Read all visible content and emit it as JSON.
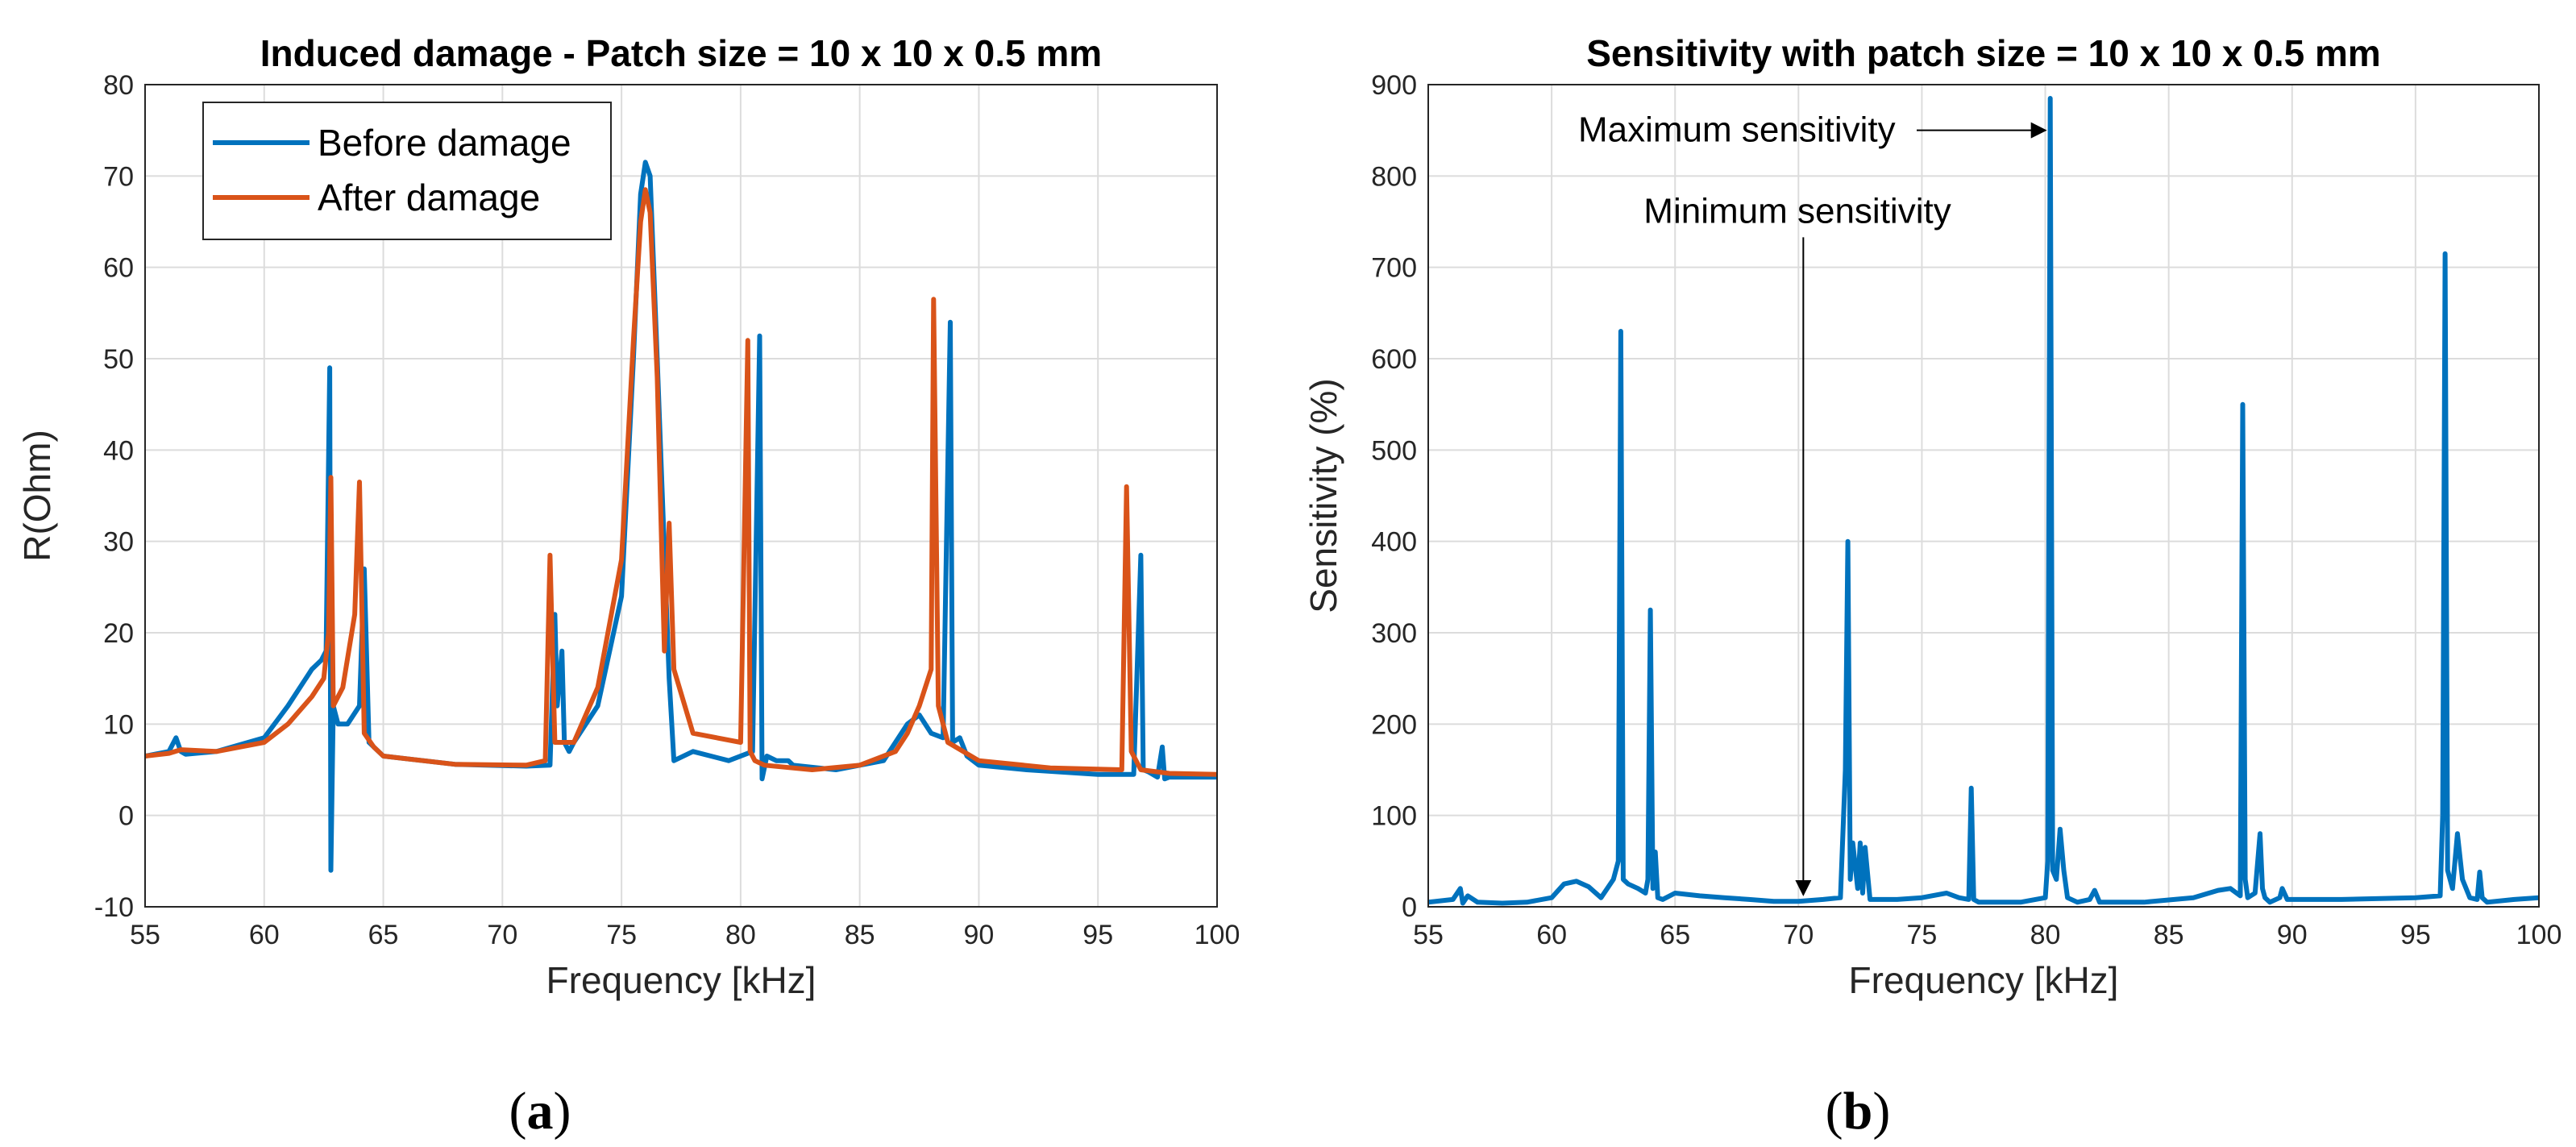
{
  "chart_data": [
    {
      "type": "line",
      "panel": "a",
      "panel_label": "(a)",
      "panel_letter": "a",
      "title": "Induced damage - Patch size = 10 x 10 x 0.5 mm",
      "xlabel": "Frequency [kHz]",
      "ylabel": "R(Ohm)",
      "xlim": [
        55,
        100
      ],
      "ylim": [
        -10,
        80
      ],
      "xticks": [
        55,
        60,
        65,
        70,
        75,
        80,
        85,
        90,
        95,
        100
      ],
      "yticks": [
        -10,
        0,
        10,
        20,
        30,
        40,
        50,
        60,
        70,
        80
      ],
      "grid": true,
      "legend": {
        "location": "top-left",
        "entries": [
          "Before damage",
          "After damage"
        ]
      },
      "series": [
        {
          "name": "Before damage",
          "color": "#0072BD",
          "x": [
            55,
            56,
            56.3,
            56.5,
            56.7,
            58,
            60,
            61,
            62,
            62.4,
            62.6,
            62.75,
            62.8,
            62.9,
            63.1,
            63.5,
            64,
            64.2,
            64.4,
            65,
            68,
            71,
            72,
            72.2,
            72.3,
            72.5,
            72.6,
            72.8,
            73,
            74,
            75,
            75.5,
            75.8,
            76,
            76.2,
            76.5,
            77,
            77.2,
            78,
            79.5,
            80.5,
            80.8,
            80.9,
            81.1,
            81.5,
            82,
            82.2,
            84,
            86,
            87,
            87.5,
            88,
            88.5,
            88.8,
            88.9,
            89.2,
            89.5,
            90,
            92,
            95,
            96.5,
            96.8,
            96.9,
            97.1,
            97.5,
            97.7,
            97.8,
            98,
            100
          ],
          "values": [
            6.5,
            7,
            8.5,
            7,
            6.7,
            7,
            8.5,
            12,
            16,
            17,
            18,
            49,
            -6,
            12,
            10,
            10,
            12,
            27,
            8,
            6.5,
            5.6,
            5.4,
            5.5,
            22,
            12,
            18,
            8,
            7,
            8,
            12,
            24,
            50,
            68,
            71.5,
            70,
            50,
            15,
            6,
            7,
            6,
            7,
            52.5,
            4,
            6.5,
            6,
            6,
            5.5,
            5,
            6,
            10,
            11,
            9,
            8.5,
            54,
            8,
            8.5,
            6.5,
            5.5,
            5,
            4.5,
            4.5,
            28.5,
            5,
            4.8,
            4.2,
            7.5,
            4,
            4.2,
            4.2
          ]
        },
        {
          "name": "After damage",
          "color": "#D95319",
          "x": [
            55,
            56,
            56.5,
            58,
            60,
            61,
            62,
            62.5,
            62.7,
            62.8,
            62.9,
            63.3,
            63.8,
            64,
            64.2,
            64.6,
            65,
            68,
            71,
            71.8,
            72,
            72.2,
            73,
            74,
            75,
            75.5,
            75.8,
            76,
            76.2,
            76.5,
            76.8,
            77,
            77.2,
            78,
            80,
            80.3,
            80.4,
            80.6,
            81,
            83,
            85,
            86.5,
            87,
            87.5,
            88,
            88.1,
            88.3,
            88.7,
            90,
            93,
            96,
            96.2,
            96.4,
            96.8,
            98,
            100
          ],
          "values": [
            6.5,
            6.8,
            7.2,
            7,
            8,
            10,
            13,
            15,
            20,
            37,
            12,
            14,
            22,
            36.5,
            9,
            7.5,
            6.5,
            5.6,
            5.5,
            6,
            28.5,
            8,
            8,
            14,
            28,
            52,
            65,
            68.5,
            66,
            48,
            18,
            32,
            16,
            9,
            8,
            52,
            7,
            6,
            5.5,
            5,
            5.5,
            7,
            9,
            12,
            16,
            56.5,
            12,
            8,
            6,
            5.2,
            5,
            36,
            7,
            5,
            4.6,
            4.5
          ]
        }
      ]
    },
    {
      "type": "line",
      "panel": "b",
      "panel_label": "(b)",
      "panel_letter": "b",
      "title": "Sensitivity with patch size = 10 x 10 x 0.5 mm",
      "xlabel": "Frequency [kHz]",
      "ylabel": "Sensitivity (%)",
      "xlim": [
        55,
        100
      ],
      "ylim": [
        0,
        900
      ],
      "xticks": [
        55,
        60,
        65,
        70,
        75,
        80,
        85,
        90,
        95,
        100
      ],
      "yticks": [
        0,
        100,
        200,
        300,
        400,
        500,
        600,
        700,
        800,
        900
      ],
      "grid": true,
      "series": [
        {
          "name": "Sensitivity",
          "color": "#0072BD",
          "x": [
            55,
            56,
            56.3,
            56.4,
            56.6,
            57,
            58,
            59,
            60,
            60.5,
            61,
            61.5,
            62,
            62.5,
            62.7,
            62.8,
            62.9,
            63.1,
            63.5,
            63.8,
            63.9,
            64.0,
            64.1,
            64.2,
            64.3,
            64.5,
            65,
            66,
            67,
            68,
            69,
            70,
            71,
            71.7,
            71.9,
            72.0,
            72.1,
            72.2,
            72.4,
            72.5,
            72.6,
            72.7,
            72.9,
            74,
            75,
            76,
            76.5,
            76.9,
            77,
            77.1,
            77.3,
            79,
            80,
            80.1,
            80.2,
            80.3,
            80.45,
            80.6,
            80.75,
            80.9,
            81.3,
            81.8,
            82,
            82.2,
            84,
            86,
            87,
            87.5,
            87.9,
            88.0,
            88.1,
            88.2,
            88.5,
            88.7,
            88.8,
            88.9,
            89.1,
            89.5,
            89.6,
            89.8,
            92,
            95,
            96,
            96.1,
            96.2,
            96.3,
            96.5,
            96.7,
            96.9,
            97.2,
            97.5,
            97.6,
            97.7,
            97.9,
            99,
            100
          ],
          "values": [
            5,
            8,
            20,
            4,
            12,
            5,
            4,
            5,
            10,
            25,
            28,
            22,
            10,
            30,
            50,
            630,
            30,
            25,
            20,
            15,
            30,
            325,
            20,
            60,
            10,
            8,
            15,
            12,
            10,
            8,
            6,
            6,
            8,
            10,
            150,
            400,
            30,
            70,
            20,
            70,
            15,
            65,
            8,
            8,
            10,
            15,
            10,
            8,
            130,
            8,
            5,
            5,
            10,
            50,
            885,
            40,
            30,
            85,
            40,
            10,
            5,
            8,
            18,
            5,
            5,
            10,
            18,
            20,
            12,
            550,
            30,
            10,
            15,
            80,
            20,
            10,
            5,
            10,
            20,
            8,
            8,
            10,
            12,
            100,
            715,
            40,
            20,
            80,
            30,
            10,
            8,
            38,
            10,
            5,
            8,
            10
          ]
        }
      ],
      "annotations": [
        {
          "text": "Maximum sensitivity",
          "arrow_to_x": 80.2,
          "arrow_to_y": 860,
          "label_y": 850
        },
        {
          "text": "Minimum sensitivity",
          "arrow_to_x": 70,
          "arrow_to_y": 8,
          "label_y": 740
        }
      ]
    }
  ]
}
